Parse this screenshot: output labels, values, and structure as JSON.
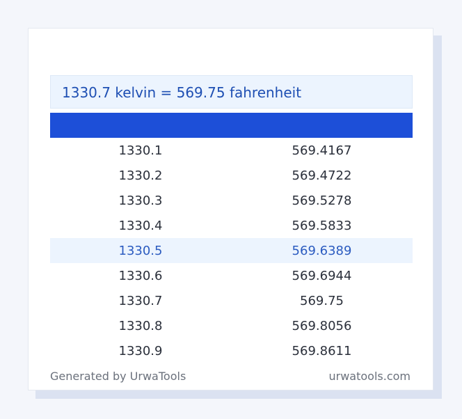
{
  "result": {
    "text": "1330.7 kelvin = 569.75 fahrenheit"
  },
  "table": {
    "rows": [
      {
        "kelvin": "1330.1",
        "fahrenheit": "569.4167"
      },
      {
        "kelvin": "1330.2",
        "fahrenheit": "569.4722"
      },
      {
        "kelvin": "1330.3",
        "fahrenheit": "569.5278"
      },
      {
        "kelvin": "1330.4",
        "fahrenheit": "569.5833"
      },
      {
        "kelvin": "1330.5",
        "fahrenheit": "569.6389"
      },
      {
        "kelvin": "1330.6",
        "fahrenheit": "569.6944"
      },
      {
        "kelvin": "1330.7",
        "fahrenheit": "569.75"
      },
      {
        "kelvin": "1330.8",
        "fahrenheit": "569.8056"
      },
      {
        "kelvin": "1330.9",
        "fahrenheit": "569.8611"
      }
    ]
  },
  "footer": {
    "generated_by": "Generated by UrwaTools",
    "site": "urwatools.com"
  },
  "colors": {
    "accent": "#1d4fd8",
    "highlight_bg": "#ecf4fe",
    "highlight_text": "#2b5bc0"
  }
}
